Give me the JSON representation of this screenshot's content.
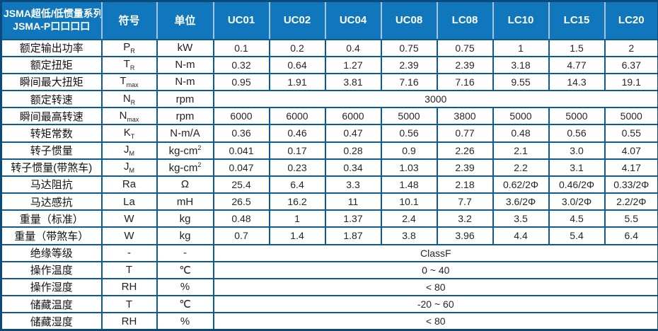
{
  "table": {
    "header": {
      "series_title_line1": "JSMA超低/低惯量系列",
      "series_title_line2": "JSMA-P口口口口",
      "symbol_label": "符号",
      "unit_label": "单位",
      "models": [
        "UC01",
        "UC02",
        "UC04",
        "UC08",
        "LC08",
        "LC10",
        "LC15",
        "LC20"
      ]
    },
    "rows": [
      {
        "label": "额定输出功率",
        "symbol": "P",
        "sub": "R",
        "unit": "kW",
        "values": [
          "0.1",
          "0.2",
          "0.4",
          "0.75",
          "0.75",
          "1",
          "1.5",
          "2"
        ]
      },
      {
        "label": "额定扭矩",
        "symbol": "T",
        "sub": "R",
        "unit": "N-m",
        "values": [
          "0.32",
          "0.64",
          "1.27",
          "2.39",
          "2.39",
          "3.18",
          "4.77",
          "6.37"
        ]
      },
      {
        "label": "瞬间最大扭矩",
        "symbol": "T",
        "sub": "max",
        "unit": "N-m",
        "values": [
          "0.95",
          "1.91",
          "3.81",
          "7.16",
          "7.16",
          "9.55",
          "14.3",
          "19.1"
        ]
      },
      {
        "label": "额定转速",
        "symbol": "N",
        "sub": "R",
        "unit": "rpm",
        "span": "3000"
      },
      {
        "label": "瞬间最高转速",
        "symbol": "N",
        "sub": "max",
        "unit": "rpm",
        "values": [
          "6000",
          "6000",
          "6000",
          "5000",
          "3800",
          "5000",
          "5000",
          "5000"
        ]
      },
      {
        "label": "转矩常数",
        "symbol": "K",
        "sub": "T",
        "unit": "N-m/A",
        "values": [
          "0.36",
          "0.46",
          "0.47",
          "0.56",
          "0.77",
          "0.48",
          "0.56",
          "0.55"
        ]
      },
      {
        "label": "转子惯量",
        "symbol": "J",
        "sub": "M",
        "unit": "kg-cm",
        "unit_sup": "2",
        "values": [
          "0.041",
          "0.17",
          "0.28",
          "0.9",
          "2.26",
          "2.1",
          "3.0",
          "4.07"
        ]
      },
      {
        "label": "转子惯量(带煞车)",
        "symbol": "J",
        "sub": "M",
        "unit": "kg-cm",
        "unit_sup": "2",
        "values": [
          "0.047",
          "0.23",
          "0.34",
          "1.03",
          "2.39",
          "2.2",
          "3.1",
          "4.17"
        ]
      },
      {
        "label": "马达阻抗",
        "symbol": "Ra",
        "unit": "Ω",
        "values": [
          "25.4",
          "6.4",
          "3.3",
          "1.48",
          "2.18",
          "0.62/2Φ",
          "0.46/2Φ",
          "0.33/2Φ"
        ]
      },
      {
        "label": "马达感抗",
        "symbol": "La",
        "unit": "mH",
        "values": [
          "26.5",
          "16.2",
          "11",
          "10.1",
          "7.7",
          "3.6/2Φ",
          "3.0/2Φ",
          "2.2/2Φ"
        ]
      },
      {
        "label": "重量（标准）",
        "symbol": "W",
        "unit": "kg",
        "values": [
          "0.48",
          "1",
          "1.37",
          "2.4",
          "3.2",
          "3.5",
          "4.5",
          "5.5"
        ]
      },
      {
        "label": "重量（带煞车）",
        "symbol": "W",
        "unit": "kg",
        "values": [
          "0.7",
          "1.4",
          "1.87",
          "3.8",
          "3.96",
          "4.4",
          "5.4",
          "6.4"
        ]
      },
      {
        "label": "绝缘等级",
        "symbol": "-",
        "unit": "-",
        "span": "ClassF"
      },
      {
        "label": "操作温度",
        "symbol": "T",
        "unit": "℃",
        "span": "0 ~ 40"
      },
      {
        "label": "操作湿度",
        "symbol": "RH",
        "unit": "%",
        "span": "< 80"
      },
      {
        "label": "储藏温度",
        "symbol": "T",
        "unit": "℃",
        "span": "-20 ~ 60"
      },
      {
        "label": "储藏湿度",
        "symbol": "RH",
        "unit": "%",
        "span": "< 80"
      }
    ],
    "colors": {
      "header_bg": "#1077bd",
      "header_text": "#ffffff",
      "header_divider": "#a9c3de",
      "grid_border": "#0c5a96",
      "outer_border": "#0a4a7d",
      "value_text": "#262626"
    }
  }
}
